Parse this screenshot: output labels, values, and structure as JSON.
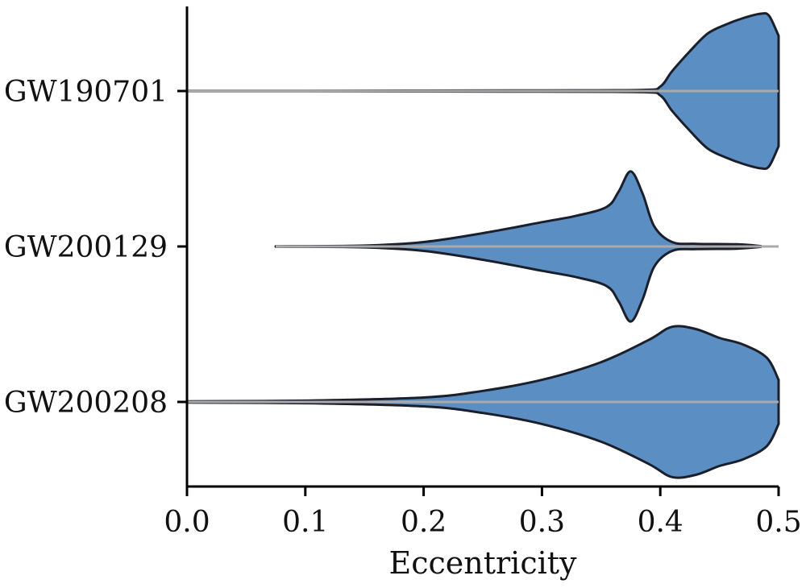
{
  "chart_data": {
    "type": "violin",
    "orientation": "horizontal",
    "title": "",
    "xlabel": "Eccentricity",
    "ylabel": "",
    "xlim": [
      0,
      0.5
    ],
    "xticks": [
      "0.0",
      "0.1",
      "0.2",
      "0.3",
      "0.4",
      "0.5"
    ],
    "categories": [
      "GW190701",
      "GW200129",
      "GW200208"
    ],
    "grid": false,
    "colors": {
      "fill": "#5b8fc3",
      "edge": "#1a1f2b",
      "median_line": "#aaaaaa",
      "axis": "#000000"
    },
    "violins": [
      {
        "category": "GW190701",
        "range": [
          0.0,
          0.5
        ],
        "profile": [
          [
            0.0,
            0.001
          ],
          [
            0.1,
            0.001
          ],
          [
            0.2,
            0.002
          ],
          [
            0.3,
            0.003
          ],
          [
            0.385,
            0.005
          ],
          [
            0.4,
            0.02
          ],
          [
            0.41,
            0.09
          ],
          [
            0.425,
            0.18
          ],
          [
            0.44,
            0.26
          ],
          [
            0.455,
            0.3
          ],
          [
            0.47,
            0.33
          ],
          [
            0.485,
            0.35
          ],
          [
            0.492,
            0.34
          ],
          [
            0.5,
            0.25
          ]
        ]
      },
      {
        "category": "GW200129",
        "range": [
          0.075,
          0.485
        ],
        "profile": [
          [
            0.075,
            0.001
          ],
          [
            0.15,
            0.004
          ],
          [
            0.2,
            0.02
          ],
          [
            0.25,
            0.06
          ],
          [
            0.3,
            0.11
          ],
          [
            0.33,
            0.14
          ],
          [
            0.355,
            0.18
          ],
          [
            0.365,
            0.25
          ],
          [
            0.375,
            0.34
          ],
          [
            0.385,
            0.24
          ],
          [
            0.395,
            0.09
          ],
          [
            0.41,
            0.02
          ],
          [
            0.43,
            0.012
          ],
          [
            0.465,
            0.01
          ],
          [
            0.485,
            0.002
          ]
        ]
      },
      {
        "category": "GW200208",
        "range": [
          0.0,
          0.5
        ],
        "profile": [
          [
            0.0,
            0.003
          ],
          [
            0.1,
            0.006
          ],
          [
            0.2,
            0.02
          ],
          [
            0.25,
            0.05
          ],
          [
            0.3,
            0.1
          ],
          [
            0.35,
            0.18
          ],
          [
            0.39,
            0.28
          ],
          [
            0.41,
            0.34
          ],
          [
            0.43,
            0.33
          ],
          [
            0.45,
            0.29
          ],
          [
            0.47,
            0.26
          ],
          [
            0.49,
            0.2
          ],
          [
            0.5,
            0.1
          ]
        ]
      }
    ]
  }
}
